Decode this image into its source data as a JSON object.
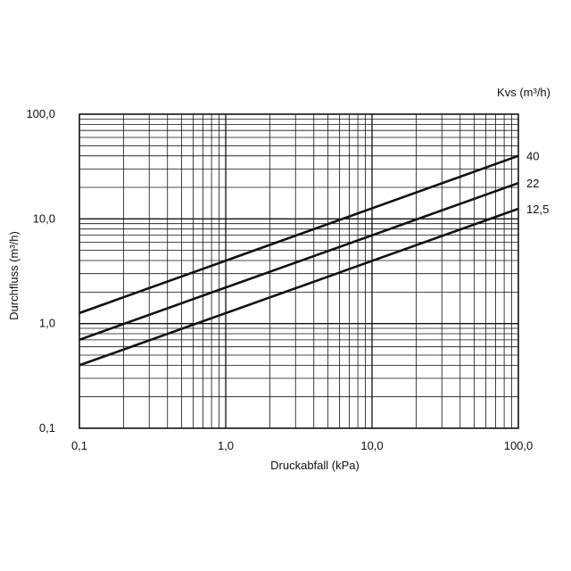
{
  "chart_data": {
    "type": "line",
    "x_scale": "log",
    "y_scale": "log",
    "xlim": [
      0.1,
      100.0
    ],
    "ylim": [
      0.1,
      100.0
    ],
    "grid": true,
    "xlabel": "Druckabfall (kPa)",
    "ylabel": "Durchfluss  (m³/h)",
    "legend_title": "Kvs (m³/h)",
    "x_ticks": [
      0.1,
      1.0,
      10.0,
      100.0
    ],
    "x_tick_labels": [
      "0,1",
      "1,0",
      "10,0",
      "100,0"
    ],
    "y_ticks": [
      0.1,
      1.0,
      10.0,
      100.0
    ],
    "y_tick_labels": [
      "0,1",
      "1,0",
      "10,0",
      "100,0"
    ],
    "series": [
      {
        "name": "40",
        "x": [
          0.1,
          100.0
        ],
        "y": [
          1.26,
          40.0
        ]
      },
      {
        "name": "22",
        "x": [
          0.1,
          100.0
        ],
        "y": [
          0.7,
          22.0
        ]
      },
      {
        "name": "12,5",
        "x": [
          0.1,
          100.0
        ],
        "y": [
          0.4,
          12.5
        ]
      }
    ]
  },
  "colors": {
    "line": "#111111",
    "grid": "#111111",
    "background": "#ffffff"
  }
}
